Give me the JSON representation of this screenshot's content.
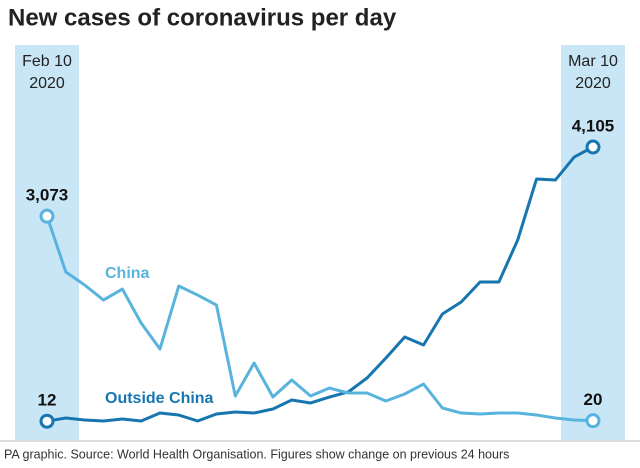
{
  "chart_data": {
    "type": "line",
    "title": "New cases of coronavirus per day",
    "source": "PA graphic. Source: World Health Organisation. Figures show change on previous 24 hours",
    "categories": [
      "Feb 10 2020",
      null,
      null,
      null,
      null,
      null,
      null,
      null,
      null,
      null,
      null,
      null,
      null,
      null,
      null,
      null,
      null,
      null,
      null,
      null,
      null,
      null,
      null,
      null,
      null,
      null,
      null,
      null,
      null,
      "Mar 10 2020"
    ],
    "series": [
      {
        "name": "Outside China",
        "color": "#1776b0",
        "values": [
          12,
          60,
          30,
          15,
          45,
          15,
          134,
          104,
          15,
          119,
          149,
          134,
          194,
          328,
          284,
          373,
          448,
          657,
          955,
          1269,
          1149,
          1612,
          1791,
          2090,
          2090,
          2716,
          3627,
          3612,
          3955,
          4105
        ],
        "value_labels": [
          null,
          null,
          null,
          null,
          null,
          null,
          null,
          null,
          null,
          null,
          null,
          null,
          null,
          null,
          null,
          null,
          null,
          null,
          null,
          null,
          null,
          null,
          null,
          null,
          null,
          null,
          null,
          null,
          null,
          "4,105"
        ]
      },
      {
        "name": "China",
        "color": "#59b4dd",
        "values": [
          3073,
          2239,
          2045,
          1820,
          1985,
          1478,
          1090,
          2030,
          1895,
          1746,
          388,
          880,
          373,
          627,
          388,
          507,
          433,
          433,
          313,
          418,
          567,
          209,
          134,
          119,
          134,
          134,
          104,
          60,
          30,
          20
        ],
        "value_labels": [
          "3,073",
          null,
          null,
          null,
          null,
          null,
          null,
          null,
          null,
          null,
          null,
          null,
          null,
          null,
          null,
          null,
          null,
          null,
          null,
          null,
          null,
          null,
          null,
          null,
          null,
          null,
          null,
          null,
          null,
          null
        ]
      }
    ],
    "highlight_color": "#c8e6f5"
  }
}
